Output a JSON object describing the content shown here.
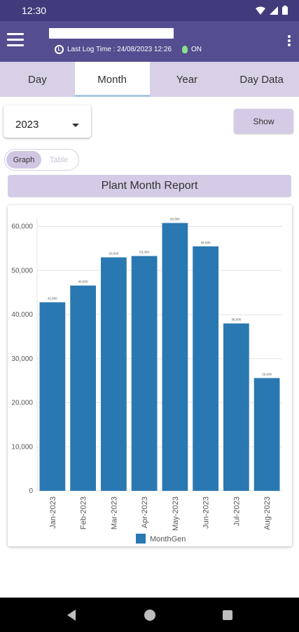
{
  "status_bar": {
    "time": "12:30",
    "icons": [
      "wifi-icon",
      "signal-icon",
      "battery-icon"
    ]
  },
  "app_bar": {
    "log_time": "Last Log Time : 24/08/2023 12:26",
    "status": "ON",
    "colors": {
      "bar": "#544d90",
      "status_bar": "#413b7c",
      "bulb": "#8be08b"
    }
  },
  "tabs": [
    {
      "label": "Day",
      "active": false
    },
    {
      "label": "Month",
      "active": true
    },
    {
      "label": "Year",
      "active": false
    },
    {
      "label": "Day Data",
      "active": false
    }
  ],
  "controls": {
    "year": "2023",
    "show_label": "Show",
    "view_toggle": {
      "graph": "Graph",
      "table": "Table",
      "selected": "Graph"
    }
  },
  "report_title": "Plant Month Report",
  "chart_data": {
    "type": "bar",
    "categories": [
      "Jan-2023",
      "Feb-2023",
      "Mar-2023",
      "Apr-2023",
      "May-2023",
      "Jun-2023",
      "Jul-2023",
      "Aug-2023"
    ],
    "series": [
      {
        "name": "MonthGen",
        "color": "#2a78b1",
        "values": [
          42800,
          46600,
          53000,
          53300,
          60800,
          55500,
          38000,
          25600
        ],
        "data_labels": [
          "42,800",
          "46,600",
          "53,000",
          "53,300",
          "60,800",
          "55,500",
          "38,000",
          "25,600"
        ]
      }
    ],
    "ylim": [
      0,
      62000
    ],
    "yticks": [
      0,
      10000,
      20000,
      30000,
      40000,
      50000,
      60000
    ],
    "ytick_labels": [
      "0",
      "10,000",
      "20,000",
      "30,000",
      "40,000",
      "50,000",
      "60,000"
    ],
    "grid": true,
    "legend_position": "bottom-center"
  }
}
